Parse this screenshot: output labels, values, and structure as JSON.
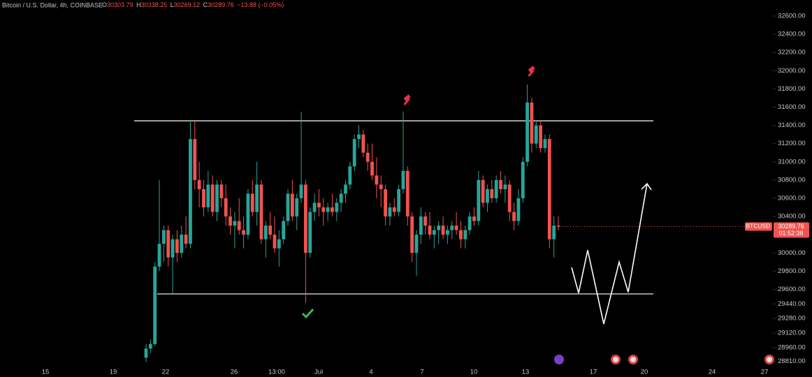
{
  "chart_data": {
    "type": "candlestick",
    "title": "Bitcoin / U.S. Dollar, 4h, COINBASE",
    "ohlc_header": [
      {
        "key": "O",
        "value": "30303.79"
      },
      {
        "key": "H",
        "value": "30338.25"
      },
      {
        "key": "L",
        "value": "30269.12"
      },
      {
        "key": "C",
        "value": "30289.76"
      }
    ],
    "change": "−13.88 (−0.05%)",
    "symbol": "BTCUSD",
    "last_price": "30289.76",
    "countdown": "01:52:38",
    "up_color": "#26a69a",
    "down_color": "#ef5350",
    "ylim": [
      28638,
      32776
    ],
    "yticks": [
      {
        "value": 32600,
        "label": "32600.00"
      },
      {
        "value": 32400,
        "label": "32400.00"
      },
      {
        "value": 32200,
        "label": "32200.00"
      },
      {
        "value": 32000,
        "label": "32000.00"
      },
      {
        "value": 31800,
        "label": "31800.00"
      },
      {
        "value": 31600,
        "label": "31600.00"
      },
      {
        "value": 31400,
        "label": "31400.00"
      },
      {
        "value": 31200,
        "label": "31200.00"
      },
      {
        "value": 31000,
        "label": "31000.00"
      },
      {
        "value": 30800,
        "label": "30800.00"
      },
      {
        "value": 30600,
        "label": "30600.00"
      },
      {
        "value": 30400,
        "label": "30400.00"
      },
      {
        "value": 30200,
        "label": "30200.00"
      },
      {
        "value": 30000,
        "label": "30000.00"
      },
      {
        "value": 29800,
        "label": "29800.00"
      },
      {
        "value": 29600,
        "label": "29600.00"
      },
      {
        "value": 29440,
        "label": "29440.00"
      },
      {
        "value": 29280,
        "label": "29280.00"
      },
      {
        "value": 29120,
        "label": "29120.00"
      },
      {
        "value": 28960,
        "label": "28960.00"
      },
      {
        "value": 28810,
        "label": "28810.00"
      }
    ],
    "xticks": [
      "15",
      "19",
      "22",
      "26",
      "13:00",
      "Jul",
      "4",
      "7",
      "10",
      "13",
      "17",
      "20",
      "24",
      "27"
    ],
    "levels": [
      31450,
      29550
    ],
    "projection": [
      29840,
      29560,
      30030,
      29220,
      29900,
      29570,
      30760
    ],
    "candles": [
      [
        28850,
        29000,
        28800,
        28950
      ],
      [
        28950,
        29050,
        28900,
        29000
      ],
      [
        29000,
        29900,
        28980,
        29850
      ],
      [
        29850,
        30800,
        29800,
        30100
      ],
      [
        30100,
        30300,
        29900,
        30250
      ],
      [
        30250,
        30300,
        29850,
        29950
      ],
      [
        29950,
        30200,
        29550,
        30150
      ],
      [
        30150,
        30250,
        29900,
        30000
      ],
      [
        30000,
        30300,
        29950,
        30200
      ],
      [
        30200,
        30400,
        30050,
        30100
      ],
      [
        30100,
        31450,
        30050,
        31250
      ],
      [
        31250,
        31450,
        30700,
        30800
      ],
      [
        30800,
        31000,
        30500,
        30700
      ],
      [
        30700,
        30800,
        30400,
        30500
      ],
      [
        30500,
        30900,
        30450,
        30750
      ],
      [
        30750,
        30850,
        30400,
        30450
      ],
      [
        30450,
        30800,
        30350,
        30750
      ],
      [
        30750,
        30800,
        30500,
        30600
      ],
      [
        30600,
        30750,
        30300,
        30400
      ],
      [
        30400,
        30500,
        30200,
        30300
      ],
      [
        30300,
        30450,
        30050,
        30350
      ],
      [
        30350,
        30600,
        30200,
        30250
      ],
      [
        30250,
        30400,
        30050,
        30200
      ],
      [
        30200,
        30700,
        30150,
        30650
      ],
      [
        30650,
        30800,
        30400,
        30450
      ],
      [
        30450,
        31000,
        30300,
        30750
      ],
      [
        30750,
        30800,
        30100,
        30150
      ],
      [
        30150,
        30350,
        29950,
        30300
      ],
      [
        30300,
        30450,
        30150,
        30200
      ],
      [
        30200,
        30400,
        30000,
        30050
      ],
      [
        30050,
        30250,
        29850,
        30150
      ],
      [
        30150,
        30400,
        30100,
        30350
      ],
      [
        30350,
        30700,
        30300,
        30650
      ],
      [
        30650,
        30800,
        30350,
        30400
      ],
      [
        30400,
        30650,
        30250,
        30600
      ],
      [
        30600,
        31550,
        30550,
        30750
      ],
      [
        30750,
        30800,
        29450,
        30000
      ],
      [
        30000,
        30500,
        29950,
        30450
      ],
      [
        30450,
        30650,
        30350,
        30550
      ],
      [
        30550,
        30700,
        30400,
        30500
      ],
      [
        30500,
        30600,
        30300,
        30450
      ],
      [
        30450,
        30550,
        30350,
        30500
      ],
      [
        30500,
        30650,
        30400,
        30450
      ],
      [
        30450,
        30600,
        30350,
        30550
      ],
      [
        30550,
        30700,
        30450,
        30650
      ],
      [
        30650,
        30800,
        30550,
        30750
      ],
      [
        30750,
        31000,
        30700,
        30950
      ],
      [
        30950,
        31300,
        30900,
        31250
      ],
      [
        31250,
        31400,
        31150,
        31300
      ],
      [
        31300,
        31350,
        31050,
        31100
      ],
      [
        31100,
        31200,
        30900,
        31000
      ],
      [
        31000,
        31200,
        30800,
        30850
      ],
      [
        30850,
        31050,
        30600,
        30750
      ],
      [
        30750,
        30850,
        30500,
        30700
      ],
      [
        30700,
        30750,
        30300,
        30400
      ],
      [
        30400,
        30550,
        30300,
        30500
      ],
      [
        30500,
        30600,
        30400,
        30450
      ],
      [
        30450,
        30750,
        30400,
        30700
      ],
      [
        30700,
        31550,
        30650,
        30900
      ],
      [
        30900,
        30950,
        30300,
        30400
      ],
      [
        30400,
        30450,
        29900,
        30000
      ],
      [
        30000,
        30250,
        29750,
        30200
      ],
      [
        30200,
        30500,
        30100,
        30400
      ],
      [
        30400,
        30450,
        30200,
        30300
      ],
      [
        30300,
        30450,
        30150,
        30200
      ],
      [
        30200,
        30300,
        30050,
        30250
      ],
      [
        30250,
        30350,
        30100,
        30300
      ],
      [
        30300,
        30400,
        30150,
        30200
      ],
      [
        30200,
        30300,
        30100,
        30250
      ],
      [
        30250,
        30350,
        30150,
        30300
      ],
      [
        30300,
        30450,
        30200,
        30250
      ],
      [
        30250,
        30350,
        30050,
        30150
      ],
      [
        30150,
        30300,
        30050,
        30250
      ],
      [
        30250,
        30450,
        30200,
        30400
      ],
      [
        30400,
        30500,
        30300,
        30350
      ],
      [
        30350,
        30900,
        30300,
        30800
      ],
      [
        30800,
        30850,
        30500,
        30550
      ],
      [
        30550,
        30750,
        30450,
        30700
      ],
      [
        30700,
        30800,
        30550,
        30600
      ],
      [
        30600,
        30850,
        30550,
        30800
      ],
      [
        30800,
        30900,
        30650,
        30700
      ],
      [
        30700,
        30850,
        30550,
        30750
      ],
      [
        30750,
        30800,
        30350,
        30450
      ],
      [
        30450,
        30550,
        30250,
        30350
      ],
      [
        30350,
        30700,
        30300,
        30600
      ],
      [
        30600,
        31050,
        30550,
        31000
      ],
      [
        31000,
        31850,
        30950,
        31650
      ],
      [
        31650,
        31700,
        31100,
        31200
      ],
      [
        31200,
        31450,
        31150,
        31400
      ],
      [
        31400,
        31450,
        31100,
        31150
      ],
      [
        31150,
        31300,
        31100,
        31250
      ],
      [
        31250,
        31300,
        30050,
        30150
      ],
      [
        30150,
        30400,
        29950,
        30300
      ],
      [
        30300,
        30400,
        30250,
        30290
      ]
    ]
  }
}
